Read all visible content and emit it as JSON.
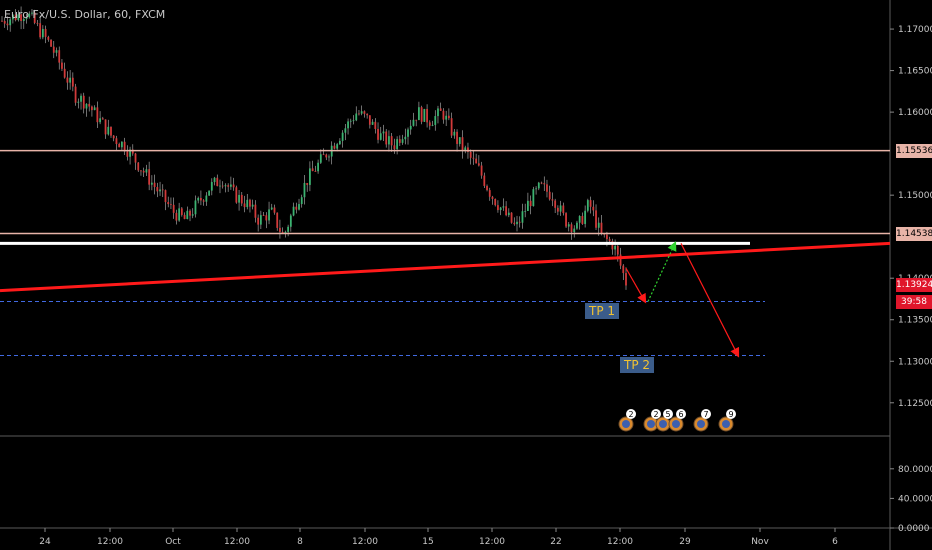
{
  "chart_data": {
    "type": "candlestick",
    "title": "Euro Fx/U.S. Dollar, 60, FXCM",
    "price_axis": {
      "ticks": [
        "1.17000",
        "1.16500",
        "1.16000",
        "1.15000",
        "1.14000",
        "1.13500",
        "1.13000",
        "1.12500"
      ],
      "ylim": [
        1.121,
        1.1735
      ]
    },
    "volume_axis": {
      "ticks": [
        "80.0000",
        "40.0000",
        "0.0000"
      ],
      "ylim": [
        0,
        100
      ]
    },
    "x_ticks": [
      "24",
      "12:00",
      "Oct",
      "12:00",
      "8",
      "12:00",
      "15",
      "12:00",
      "22",
      "12:00",
      "29",
      "Nov",
      "6"
    ],
    "horizontal_levels": [
      {
        "label": "1.15536",
        "value": 1.15536,
        "color": "#e8b4a8"
      },
      {
        "label": "1.14538",
        "value": 1.14538,
        "color": "#e8b4a8"
      }
    ],
    "support_line_value": 1.1442,
    "trendline": {
      "start": 1.1385,
      "end": 1.1442,
      "color": "#ff1a1a"
    },
    "targets": [
      {
        "label": "TP 1",
        "value": 1.1372
      },
      {
        "label": "TP 2",
        "value": 1.1307
      }
    ],
    "price_path": [
      1.171,
      1.1715,
      1.172,
      1.17,
      1.168,
      1.165,
      1.162,
      1.161,
      1.159,
      1.157,
      1.156,
      1.154,
      1.152,
      1.15,
      1.148,
      1.147,
      1.149,
      1.151,
      1.152,
      1.15,
      1.149,
      1.147,
      1.148,
      1.145,
      1.149,
      1.152,
      1.154,
      1.156,
      1.158,
      1.16,
      1.159,
      1.157,
      1.156,
      1.158,
      1.16,
      1.159,
      1.16,
      1.157,
      1.155,
      1.153,
      1.15,
      1.148,
      1.146,
      1.149,
      1.151,
      1.15,
      1.147,
      1.146,
      1.149,
      1.145,
      1.144,
      1.1395
    ],
    "current_price": {
      "label": "1.13924",
      "value": 1.13924,
      "color": "#e0162b"
    },
    "countdown": {
      "label": "39:58",
      "color": "#e0162b"
    },
    "scenario_arrows": [
      {
        "color": "#ff1a1a",
        "from": 1.1412,
        "to": 1.1372
      },
      {
        "color": "#2fd22f",
        "from": 1.1372,
        "to": 1.1442
      },
      {
        "color": "#ff1a1a",
        "from": 1.1442,
        "to": 1.1307
      }
    ],
    "event_markers": [
      "2",
      "2",
      "5",
      "6",
      "7",
      "9"
    ]
  }
}
